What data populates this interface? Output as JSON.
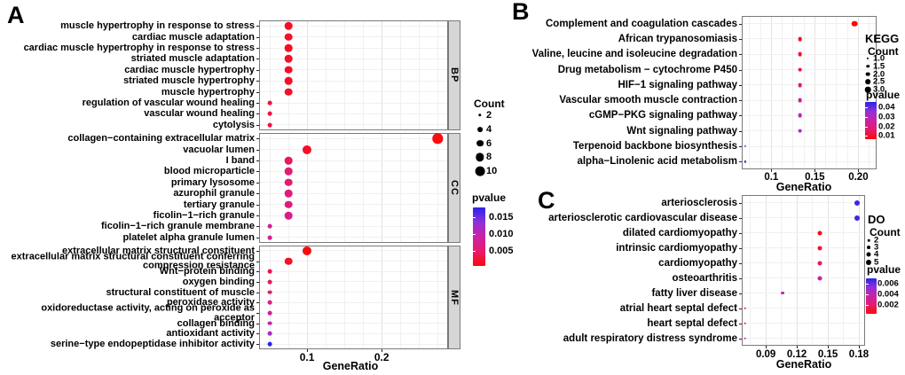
{
  "figure": {
    "panel_letters": [
      "A",
      "B",
      "C"
    ]
  },
  "colors": {
    "background": "#ffffff",
    "text": "#000000",
    "panel_border": "#7a7a7a",
    "strip_bg": "#d6d6d6",
    "grid_minor": "#f0f0f0",
    "grid_major": "#e2e2e2",
    "legend_dot": "#000000",
    "pvalue_gradient_low_to_high": [
      "#fa0a0a",
      "#e61a6b",
      "#cb21a5",
      "#9031d8",
      "#2a23ea"
    ]
  },
  "chart_data": [
    {
      "type": "scatter",
      "panel_label": "A",
      "xlabel": "GeneRatio",
      "xtick_labels": [
        "0.1",
        "0.2"
      ],
      "xtick_values": [
        0.1,
        0.2
      ],
      "xlim": [
        0.0357,
        0.289
      ],
      "grid_on": true,
      "legend": {
        "title": "",
        "count_title": "Count",
        "count_items": [
          {
            "label": "2",
            "value": 2
          },
          {
            "label": "4",
            "value": 4
          },
          {
            "label": "6",
            "value": 6
          },
          {
            "label": "8",
            "value": 8
          },
          {
            "label": "10",
            "value": 10
          }
        ],
        "pvalue_title": "pvalue",
        "pvalue_tick_labels": [
          "0.015",
          "0.010",
          "0.005"
        ],
        "pvalue_color_domain": [
          0.0008,
          0.016
        ]
      },
      "facets": [
        {
          "name": "BP",
          "terms": [
            {
              "term": "muscle hypertrophy in response to stress",
              "gene_ratio": 0.075,
              "count": 7,
              "pvalue": 0.002
            },
            {
              "term": "cardiac muscle adaptation",
              "gene_ratio": 0.075,
              "count": 7,
              "pvalue": 0.002
            },
            {
              "term": "cardiac muscle hypertrophy in response to stress",
              "gene_ratio": 0.075,
              "count": 7,
              "pvalue": 0.002
            },
            {
              "term": "striated muscle adaptation",
              "gene_ratio": 0.075,
              "count": 7,
              "pvalue": 0.002
            },
            {
              "term": "cardiac muscle hypertrophy",
              "gene_ratio": 0.075,
              "count": 7,
              "pvalue": 0.002
            },
            {
              "term": "striated muscle hypertrophy",
              "gene_ratio": 0.075,
              "count": 7,
              "pvalue": 0.002
            },
            {
              "term": "muscle hypertrophy",
              "gene_ratio": 0.075,
              "count": 7,
              "pvalue": 0.002
            },
            {
              "term": "regulation of vascular wound healing",
              "gene_ratio": 0.05,
              "count": 3,
              "pvalue": 0.003
            },
            {
              "term": "vascular wound healing",
              "gene_ratio": 0.05,
              "count": 3,
              "pvalue": 0.003
            },
            {
              "term": "cytolysis",
              "gene_ratio": 0.05,
              "count": 3,
              "pvalue": 0.003
            }
          ]
        },
        {
          "name": "CC",
          "terms": [
            {
              "term": "collagen−containing extracellular matrix",
              "gene_ratio": 0.275,
              "count": 11,
              "pvalue": 0.001
            },
            {
              "term": "vacuolar lumen",
              "gene_ratio": 0.1,
              "count": 9,
              "pvalue": 0.002
            },
            {
              "term": "I band",
              "gene_ratio": 0.075,
              "count": 7,
              "pvalue": 0.004
            },
            {
              "term": "blood microparticle",
              "gene_ratio": 0.075,
              "count": 7,
              "pvalue": 0.005
            },
            {
              "term": "primary lysosome",
              "gene_ratio": 0.075,
              "count": 7,
              "pvalue": 0.005
            },
            {
              "term": "azurophil granule",
              "gene_ratio": 0.075,
              "count": 7,
              "pvalue": 0.0055
            },
            {
              "term": "tertiary granule",
              "gene_ratio": 0.075,
              "count": 7,
              "pvalue": 0.006
            },
            {
              "term": "ficolin−1−rich granule",
              "gene_ratio": 0.075,
              "count": 7,
              "pvalue": 0.0065
            },
            {
              "term": "ficolin−1−rich granule membrane",
              "gene_ratio": 0.05,
              "count": 3,
              "pvalue": 0.007
            },
            {
              "term": "platelet alpha granule lumen",
              "gene_ratio": 0.05,
              "count": 3,
              "pvalue": 0.007
            }
          ]
        },
        {
          "name": "MF",
          "terms": [
            {
              "term": "extracellular matrix structural constituent",
              "gene_ratio": 0.1,
              "count": 9,
              "pvalue": 0.001
            },
            {
              "term": "extracellular matrix structural constituent conferring compression resistance",
              "gene_ratio": 0.075,
              "count": 7,
              "pvalue": 0.002
            },
            {
              "term": "Wnt−protein binding",
              "gene_ratio": 0.05,
              "count": 3,
              "pvalue": 0.003
            },
            {
              "term": "oxygen binding",
              "gene_ratio": 0.05,
              "count": 3,
              "pvalue": 0.004
            },
            {
              "term": "structural constituent of muscle",
              "gene_ratio": 0.05,
              "count": 3,
              "pvalue": 0.005
            },
            {
              "term": "peroxidase activity",
              "gene_ratio": 0.05,
              "count": 3,
              "pvalue": 0.006
            },
            {
              "term": "oxidoreductase activity, acting on peroxide as acceptor",
              "gene_ratio": 0.05,
              "count": 3,
              "pvalue": 0.007
            },
            {
              "term": "collagen binding",
              "gene_ratio": 0.05,
              "count": 3,
              "pvalue": 0.009
            },
            {
              "term": "antioxidant activity",
              "gene_ratio": 0.05,
              "count": 3,
              "pvalue": 0.011
            },
            {
              "term": "serine−type endopeptidase inhibitor activity",
              "gene_ratio": 0.05,
              "count": 3,
              "pvalue": 0.016
            }
          ]
        }
      ]
    },
    {
      "type": "scatter",
      "panel_label": "B",
      "xlabel": "GeneRatio",
      "xtick_labels": [
        "0.1",
        "0.15",
        "0.20"
      ],
      "xtick_values": [
        0.1,
        0.15,
        0.2
      ],
      "xlim": [
        0.066,
        0.221
      ],
      "grid_on": true,
      "legend": {
        "title": "KEGG",
        "count_title": "Count",
        "count_items": [
          {
            "label": "1.0",
            "value": 1
          },
          {
            "label": "1.5",
            "value": 1.5
          },
          {
            "label": "2.0",
            "value": 2
          },
          {
            "label": "2.5",
            "value": 2.5
          },
          {
            "label": "3.0",
            "value": 3
          }
        ],
        "pvalue_title": "pvalue",
        "pvalue_tick_labels": [
          "0.04",
          "0.03",
          "0.02",
          "0.01"
        ],
        "pvalue_color_domain": [
          0.002,
          0.036
        ]
      },
      "facets": [
        {
          "name": "",
          "terms": [
            {
              "term": "Complement and coagulation cascades",
              "gene_ratio": 0.196,
              "count": 3,
              "pvalue": 0.002
            },
            {
              "term": "African trypanosomiasis",
              "gene_ratio": 0.133,
              "count": 2,
              "pvalue": 0.004
            },
            {
              "term": "Valine, leucine and isoleucine degradation",
              "gene_ratio": 0.133,
              "count": 2,
              "pvalue": 0.005
            },
            {
              "term": "Drug metabolism − cytochrome P450",
              "gene_ratio": 0.133,
              "count": 2,
              "pvalue": 0.006
            },
            {
              "term": "HIF−1 signaling pathway",
              "gene_ratio": 0.133,
              "count": 2,
              "pvalue": 0.013
            },
            {
              "term": "Vascular smooth muscle contraction",
              "gene_ratio": 0.133,
              "count": 2,
              "pvalue": 0.017
            },
            {
              "term": "cGMP−PKG signaling pathway",
              "gene_ratio": 0.133,
              "count": 2,
              "pvalue": 0.021
            },
            {
              "term": "Wnt signaling pathway",
              "gene_ratio": 0.133,
              "count": 2,
              "pvalue": 0.024
            },
            {
              "term": "Terpenoid backbone biosynthesis",
              "gene_ratio": 0.07,
              "count": 1,
              "pvalue": 0.027
            },
            {
              "term": "alpha−Linolenic acid metabolism",
              "gene_ratio": 0.07,
              "count": 1,
              "pvalue": 0.034
            }
          ]
        }
      ]
    },
    {
      "type": "scatter",
      "panel_label": "C",
      "xlabel": "GeneRatio",
      "xtick_labels": [
        "0.09",
        "0.12",
        "0.15",
        "0.18"
      ],
      "xtick_values": [
        0.09,
        0.12,
        0.15,
        0.18
      ],
      "xlim": [
        0.0667,
        0.186
      ],
      "grid_on": true,
      "legend": {
        "title": "DO",
        "count_title": "Count",
        "count_items": [
          {
            "label": "2",
            "value": 2
          },
          {
            "label": "3",
            "value": 3
          },
          {
            "label": "4",
            "value": 4
          },
          {
            "label": "5",
            "value": 5
          }
        ],
        "pvalue_title": "pvalue",
        "pvalue_tick_labels": [
          "0.006",
          "0.004",
          "0.002"
        ],
        "pvalue_color_domain": [
          0.0008,
          0.0063
        ]
      },
      "facets": [
        {
          "name": "",
          "terms": [
            {
              "term": "arteriosclerosis",
              "gene_ratio": 0.178,
              "count": 5,
              "pvalue": 0.006
            },
            {
              "term": "arteriosclerotic cardiovascular disease",
              "gene_ratio": 0.178,
              "count": 5,
              "pvalue": 0.006
            },
            {
              "term": "dilated cardiomyopathy",
              "gene_ratio": 0.142,
              "count": 4,
              "pvalue": 0.001
            },
            {
              "term": "intrinsic cardiomyopathy",
              "gene_ratio": 0.142,
              "count": 4,
              "pvalue": 0.0015
            },
            {
              "term": "cardiomyopathy",
              "gene_ratio": 0.142,
              "count": 4,
              "pvalue": 0.002
            },
            {
              "term": "osteoarthritis",
              "gene_ratio": 0.142,
              "count": 4,
              "pvalue": 0.0035
            },
            {
              "term": "fatty liver disease",
              "gene_ratio": 0.106,
              "count": 3,
              "pvalue": 0.004
            },
            {
              "term": "atrial heart septal defect",
              "gene_ratio": 0.07,
              "count": 2,
              "pvalue": 0.0015
            },
            {
              "term": "heart septal defect",
              "gene_ratio": 0.07,
              "count": 2,
              "pvalue": 0.002
            },
            {
              "term": "adult respiratory distress syndrome",
              "gene_ratio": 0.07,
              "count": 2,
              "pvalue": 0.004
            }
          ]
        }
      ]
    }
  ]
}
